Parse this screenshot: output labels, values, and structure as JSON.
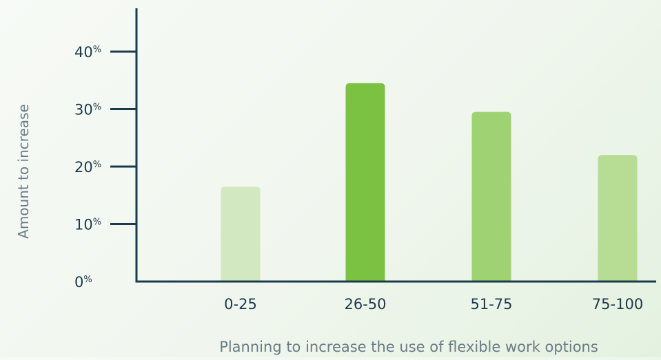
{
  "chart_data": {
    "type": "bar",
    "title": "",
    "xlabel": "Planning to increase the use of flexible work options",
    "ylabel": "Amount to increase",
    "categories": [
      "0-25",
      "26-50",
      "51-75",
      "75-100"
    ],
    "values": [
      16.5,
      34.5,
      29.5,
      22
    ],
    "ylim": [
      0,
      45
    ],
    "yticks": [
      {
        "value": 0,
        "label": "0",
        "unit": "%"
      },
      {
        "value": 10,
        "label": "10",
        "unit": "%"
      },
      {
        "value": 20,
        "label": "20",
        "unit": "%"
      },
      {
        "value": 30,
        "label": "30",
        "unit": "%"
      },
      {
        "value": 40,
        "label": "40",
        "unit": "%"
      }
    ],
    "grid": false,
    "colors": {
      "axis": "#1b3a4b",
      "text": "#1b3a4b",
      "axis_label": "#6b7b85",
      "bars": [
        "#d2e8c0",
        "#7cc242",
        "#9ed272",
        "#b7dd94"
      ]
    }
  }
}
